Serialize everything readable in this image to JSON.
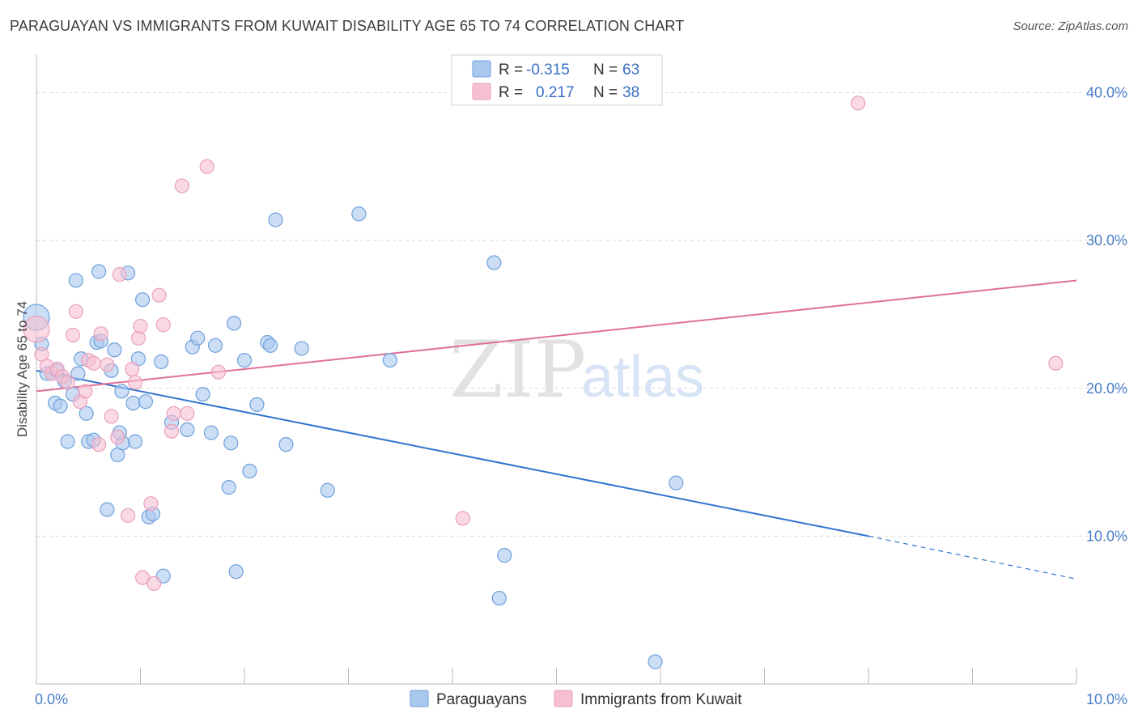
{
  "header": {
    "title": "PARAGUAYAN VS IMMIGRANTS FROM KUWAIT DISABILITY AGE 65 TO 74 CORRELATION CHART",
    "source": "Source: ZipAtlas.com"
  },
  "watermark": {
    "zip": "ZIP",
    "atlas": "atlas"
  },
  "legend": {
    "rows": [
      {
        "r_label": "R =",
        "r_value": "-0.315",
        "n_label": "N =",
        "n_value": "63",
        "color": "#6fa8e6"
      },
      {
        "r_label": "R =",
        "r_value": "0.217",
        "n_label": "N =",
        "n_value": "38",
        "color": "#f08cb0"
      }
    ]
  },
  "colors": {
    "blue_fill": "#a9c8ee",
    "blue_stroke": "#6fa0dc",
    "blue_line": "#2f74d0",
    "pink_fill": "#f6bfd2",
    "pink_stroke": "#e9a0bc",
    "pink_line": "#e0709a",
    "grid": "#d8d8d8"
  },
  "chart_data": {
    "type": "scatter",
    "title": "PARAGUAYAN VS IMMIGRANTS FROM KUWAIT DISABILITY AGE 65 TO 74 CORRELATION CHART",
    "xlabel": "",
    "ylabel": "Disability Age 65 to 74",
    "xlim": [
      0,
      10
    ],
    "ylim": [
      0,
      42
    ],
    "x_tick_labels": [
      "0.0%",
      "10.0%"
    ],
    "y_tick_values": [
      10,
      20,
      30,
      40
    ],
    "y_tick_labels": [
      "10.0%",
      "20.0%",
      "30.0%",
      "40.0%"
    ],
    "grid": true,
    "legend_position": "top-center",
    "series": [
      {
        "name": "Paraguayans",
        "color": "#6fa8e6",
        "points": [
          [
            0.0,
            24.8
          ],
          [
            0.05,
            23.0
          ],
          [
            0.1,
            21.0
          ],
          [
            0.15,
            21.0
          ],
          [
            0.18,
            19.0
          ],
          [
            0.23,
            18.8
          ],
          [
            0.3,
            16.4
          ],
          [
            0.35,
            19.6
          ],
          [
            0.38,
            27.3
          ],
          [
            0.4,
            21.0
          ],
          [
            0.43,
            22.0
          ],
          [
            0.48,
            18.3
          ],
          [
            0.5,
            16.4
          ],
          [
            0.55,
            16.5
          ],
          [
            0.58,
            23.1
          ],
          [
            0.6,
            27.9
          ],
          [
            0.62,
            23.2
          ],
          [
            0.68,
            11.8
          ],
          [
            0.72,
            21.2
          ],
          [
            0.75,
            22.6
          ],
          [
            0.78,
            15.5
          ],
          [
            0.82,
            19.8
          ],
          [
            0.83,
            16.3
          ],
          [
            0.88,
            27.8
          ],
          [
            0.93,
            19.0
          ],
          [
            0.95,
            16.4
          ],
          [
            0.98,
            22.0
          ],
          [
            1.02,
            26.0
          ],
          [
            1.05,
            19.1
          ],
          [
            1.08,
            11.3
          ],
          [
            1.12,
            11.5
          ],
          [
            1.2,
            21.8
          ],
          [
            1.22,
            7.3
          ],
          [
            1.3,
            17.7
          ],
          [
            1.45,
            17.2
          ],
          [
            1.5,
            22.8
          ],
          [
            1.55,
            23.4
          ],
          [
            1.6,
            19.6
          ],
          [
            1.68,
            17.0
          ],
          [
            1.72,
            22.9
          ],
          [
            1.85,
            13.3
          ],
          [
            1.87,
            16.3
          ],
          [
            1.9,
            24.4
          ],
          [
            1.92,
            7.6
          ],
          [
            2.0,
            21.9
          ],
          [
            2.05,
            14.4
          ],
          [
            2.12,
            18.9
          ],
          [
            2.22,
            23.1
          ],
          [
            2.25,
            22.9
          ],
          [
            2.3,
            31.4
          ],
          [
            2.4,
            16.2
          ],
          [
            2.55,
            22.7
          ],
          [
            2.8,
            13.1
          ],
          [
            3.1,
            31.8
          ],
          [
            3.4,
            21.9
          ],
          [
            4.4,
            28.5
          ],
          [
            4.45,
            5.8
          ],
          [
            4.5,
            8.7
          ],
          [
            6.15,
            13.6
          ],
          [
            5.95,
            1.5
          ],
          [
            0.2,
            21.2
          ],
          [
            0.27,
            20.5
          ],
          [
            0.8,
            17.0
          ]
        ]
      },
      {
        "name": "Immigrants from Kuwait",
        "color": "#f08cb0",
        "points": [
          [
            0.0,
            24.0
          ],
          [
            0.05,
            22.3
          ],
          [
            0.1,
            21.5
          ],
          [
            0.15,
            21.0
          ],
          [
            0.2,
            21.3
          ],
          [
            0.25,
            20.8
          ],
          [
            0.3,
            20.4
          ],
          [
            0.35,
            23.6
          ],
          [
            0.38,
            25.2
          ],
          [
            0.42,
            19.1
          ],
          [
            0.47,
            19.8
          ],
          [
            0.5,
            21.9
          ],
          [
            0.55,
            21.7
          ],
          [
            0.6,
            16.2
          ],
          [
            0.62,
            23.7
          ],
          [
            0.68,
            21.6
          ],
          [
            0.72,
            18.1
          ],
          [
            0.78,
            16.7
          ],
          [
            0.8,
            27.7
          ],
          [
            0.88,
            11.4
          ],
          [
            0.92,
            21.3
          ],
          [
            0.95,
            20.4
          ],
          [
            0.98,
            23.4
          ],
          [
            1.0,
            24.2
          ],
          [
            1.02,
            7.2
          ],
          [
            1.1,
            12.2
          ],
          [
            1.13,
            6.8
          ],
          [
            1.18,
            26.3
          ],
          [
            1.22,
            24.3
          ],
          [
            1.3,
            17.1
          ],
          [
            1.32,
            18.3
          ],
          [
            1.4,
            33.7
          ],
          [
            1.45,
            18.3
          ],
          [
            1.64,
            35.0
          ],
          [
            1.75,
            21.1
          ],
          [
            4.1,
            11.2
          ],
          [
            7.9,
            39.3
          ],
          [
            9.8,
            21.7
          ]
        ]
      }
    ],
    "trend_lines": [
      {
        "series": "Paraguayans",
        "x": [
          0.0,
          8.0
        ],
        "y": [
          21.2,
          10.0
        ],
        "dashed_extension": [
          8.0,
          10.0
        ],
        "dashed_y": [
          10.0,
          7.1
        ]
      },
      {
        "series": "Immigrants from Kuwait",
        "x": [
          0.0,
          10.0
        ],
        "y": [
          19.8,
          27.3
        ]
      }
    ]
  }
}
